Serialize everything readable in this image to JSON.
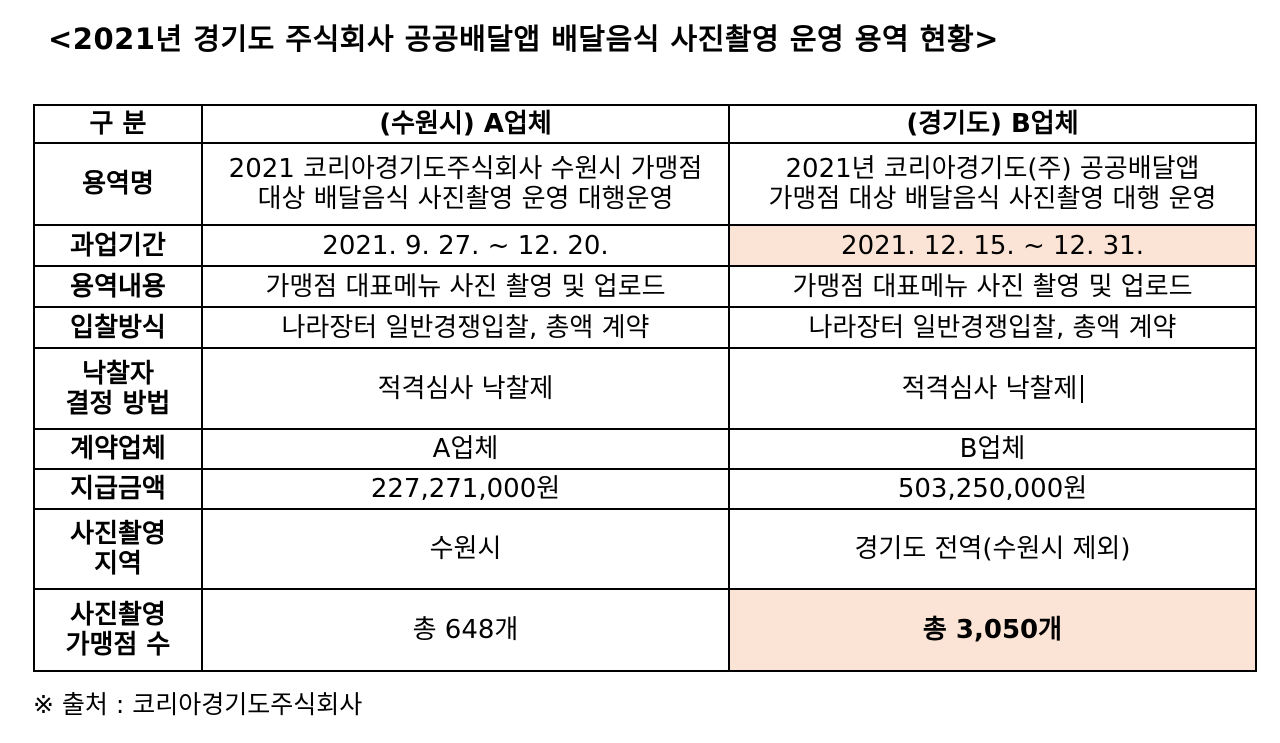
{
  "title": "<2021년 경기도 주식회사 공공배달앱 배달음식 사진촬영 운영 용역 현황>",
  "table": {
    "header": {
      "category": "구 분",
      "col_a": "(수원시) A업체",
      "col_b": "(경기도) B업체"
    },
    "rows": [
      {
        "label": "용역명",
        "a": [
          "2021 코리아경기도주식회사 수원시 가맹점",
          "대상 배달음식 사진촬영 운영 대행운영"
        ],
        "b": [
          "2021년 코리아경기도(주) 공공배달앱",
          "가맹점 대상 배달음식 사진촬영 대행 운영"
        ]
      },
      {
        "label": "과업기간",
        "a": "2021. 9. 27. ~ 12. 20.",
        "b": "2021. 12. 15. ~ 12. 31.",
        "b_highlight": true
      },
      {
        "label": "용역내용",
        "a": "가맹점 대표메뉴 사진 촬영 및 업로드",
        "b": "가맹점 대표메뉴 사진 촬영 및 업로드"
      },
      {
        "label": "입찰방식",
        "a": "나라장터 일반경쟁입찰, 총액 계약",
        "b": "나라장터 일반경쟁입찰, 총액 계약"
      },
      {
        "label": [
          "낙찰자",
          "결정 방법"
        ],
        "a": "적격심사 낙찰제",
        "b": "적격심사 낙찰제"
      },
      {
        "label": "계약업체",
        "a": "A업체",
        "b": "B업체"
      },
      {
        "label": "지급금액",
        "a": "227,271,000원",
        "b": "503,250,000원"
      },
      {
        "label": [
          "사진촬영",
          "지역"
        ],
        "a": "수원시",
        "b": "경기도 전역(수원시 제외)"
      },
      {
        "label": [
          "사진촬영",
          "가맹점 수"
        ],
        "a": "총 648개",
        "b": "총 3,050개",
        "b_highlight": true
      }
    ]
  },
  "note": "※ 출처 : 코리아경기도주식회사",
  "colors": {
    "highlight": "#fbe4d5",
    "border": "#000000"
  }
}
